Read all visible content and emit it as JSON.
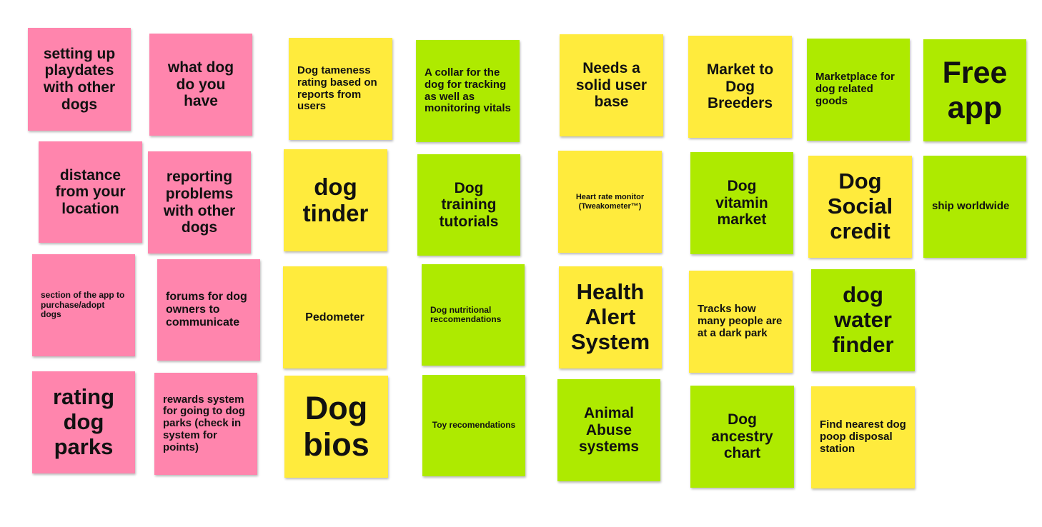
{
  "colors": {
    "pink": "#ff85ad",
    "yellow": "#ffeb3d",
    "green": "#aeea00"
  },
  "notes": [
    {
      "id": "n01",
      "text": "setting up playdates with other dogs",
      "color": "pink"
    },
    {
      "id": "n02",
      "text": "what dog do you have",
      "color": "pink"
    },
    {
      "id": "n03",
      "text": "distance from your location",
      "color": "pink"
    },
    {
      "id": "n04",
      "text": "reporting problems with other dogs",
      "color": "pink"
    },
    {
      "id": "n05",
      "text": "section of the app to purchase/adopt dogs",
      "color": "pink"
    },
    {
      "id": "n06",
      "text": "forums for dog owners to communicate",
      "color": "pink"
    },
    {
      "id": "n07",
      "text": "rating dog parks",
      "color": "pink"
    },
    {
      "id": "n08",
      "text": "rewards system for going to dog parks (check in system for points)",
      "color": "pink"
    },
    {
      "id": "n09",
      "text": "Dog tameness rating based on reports from users",
      "color": "yellow"
    },
    {
      "id": "n10",
      "text": "dog tinder",
      "color": "yellow"
    },
    {
      "id": "n11",
      "text": "Pedometer",
      "color": "yellow"
    },
    {
      "id": "n12",
      "text": "Dog bios",
      "color": "yellow"
    },
    {
      "id": "n13",
      "text": "A collar for the dog for tracking as well as monitoring vitals",
      "color": "green"
    },
    {
      "id": "n14",
      "text": "Dog training tutorials",
      "color": "green"
    },
    {
      "id": "n15",
      "text": "Dog nutritional reccomendations",
      "color": "green"
    },
    {
      "id": "n16",
      "text": "Toy recomendations",
      "color": "green"
    },
    {
      "id": "n17",
      "text": "Needs a solid user base",
      "color": "yellow"
    },
    {
      "id": "n18",
      "text": "Heart rate monitor (Tweakometer™)",
      "color": "yellow"
    },
    {
      "id": "n19",
      "text": "Health Alert System",
      "color": "yellow"
    },
    {
      "id": "n20",
      "text": "Animal Abuse systems",
      "color": "green"
    },
    {
      "id": "n21",
      "text": "Market to Dog Breeders",
      "color": "yellow"
    },
    {
      "id": "n22",
      "text": "Dog vitamin market",
      "color": "green"
    },
    {
      "id": "n23",
      "text": "Tracks how many people are at a dark park",
      "color": "yellow"
    },
    {
      "id": "n24",
      "text": "Dog ancestry chart",
      "color": "green"
    },
    {
      "id": "n25",
      "text": "Marketplace for dog related goods",
      "color": "green"
    },
    {
      "id": "n26",
      "text": "Dog Social credit",
      "color": "yellow"
    },
    {
      "id": "n27",
      "text": "dog water finder",
      "color": "green"
    },
    {
      "id": "n28",
      "text": "Find nearest dog poop disposal station",
      "color": "yellow"
    },
    {
      "id": "n29",
      "text": "Free app",
      "color": "green"
    },
    {
      "id": "n30",
      "text": "ship worldwide",
      "color": "green"
    }
  ]
}
